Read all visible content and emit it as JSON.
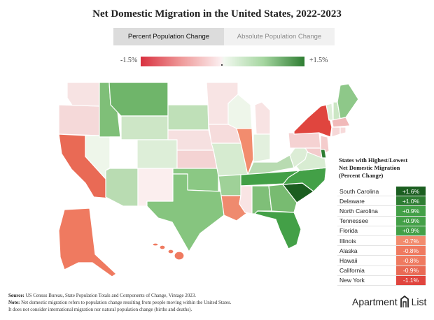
{
  "title": "Net Domestic Migration in the United States, 2022-2023",
  "tabs": [
    {
      "label": "Percent Population Change",
      "active": true
    },
    {
      "label": "Absolute Population Change",
      "active": false
    }
  ],
  "legend": {
    "min_label": "-1.5%",
    "max_label": "+1.5%",
    "low_color": "#d9303f",
    "high_color": "#2e7d32"
  },
  "table": {
    "title_lines": [
      "States with Highest/Lowest",
      "Net Domestic Migration",
      "(Percent Change)"
    ],
    "rows": [
      {
        "state": "South Carolina",
        "value": "+1.6%",
        "color": "#1b5e20"
      },
      {
        "state": "Delaware",
        "value": "+1.0%",
        "color": "#2e7d32"
      },
      {
        "state": "North Carolina",
        "value": "+0.9%",
        "color": "#43a047"
      },
      {
        "state": "Tennessee",
        "value": "+0.9%",
        "color": "#43a047"
      },
      {
        "state": "Florida",
        "value": "+0.9%",
        "color": "#43a047"
      },
      {
        "state": "Illinois",
        "value": "-0.7%",
        "color": "#f28c6e"
      },
      {
        "state": "Alaska",
        "value": "-0.8%",
        "color": "#ef7a60"
      },
      {
        "state": "Hawaii",
        "value": "-0.8%",
        "color": "#ef7a60"
      },
      {
        "state": "California",
        "value": "-0.9%",
        "color": "#e96a55"
      },
      {
        "state": "New York",
        "value": "-1.1%",
        "color": "#e0453e"
      }
    ]
  },
  "footnote": {
    "source_label": "Source:",
    "source_text": "US Census Bureau, State Population Totals and Components of Change, Vintage 2023.",
    "note_label": "Note:",
    "note_text": "Net domestic migration refers to population change resulting from people moving within the United States.",
    "note_text_2": "It does not consider international migration nor natural population change (births and deaths)."
  },
  "brand": {
    "word1": "Apartment",
    "word2": "List"
  },
  "map_colors": {
    "WA": "#f7e3e3",
    "OR": "#f5d9d9",
    "CA": "#e96a55",
    "NV": "#eef6ea",
    "ID": "#7fbf78",
    "MT": "#6fb56a",
    "WY": "#cde6c6",
    "UT": "#ffffff",
    "AZ": "#b9dcb2",
    "CO": "#ddeed8",
    "NM": "#fbeeee",
    "ND": "#ffffff",
    "SD": "#bfe0b8",
    "NE": "#f6e0e0",
    "KS": "#f4d3d3",
    "OK": "#8bc884",
    "TX": "#86c57f",
    "MN": "#f8e4e4",
    "IA": "#f6dcdc",
    "MO": "#d6ebd0",
    "AR": "#9fd198",
    "LA": "#ef8a6e",
    "WI": "#eef6ea",
    "IL": "#f28c6e",
    "MI": "#f8e3e3",
    "IN": "#e3f0de",
    "OH": "#ffffff",
    "KY": "#b8dbb1",
    "TN": "#43a047",
    "MS": "#f9e4e4",
    "AL": "#7fbf78",
    "GA": "#78bb71",
    "FL": "#43a047",
    "SC": "#1b5e20",
    "NC": "#43a047",
    "VA": "#d8ecd2",
    "WV": "#dcedd6",
    "PA": "#f5d2d2",
    "NY": "#e0453e",
    "VT": "#ddeed8",
    "NH": "#cbe6c4",
    "ME": "#8ec889",
    "MA": "#f1b9b9",
    "CT": "#f6d7d7",
    "RI": "#f7dada",
    "NJ": "#f4cccc",
    "DE": "#2e7d32",
    "MD": "#f3cccc",
    "AK": "#ef7a60",
    "HI": "#ef7a60"
  }
}
